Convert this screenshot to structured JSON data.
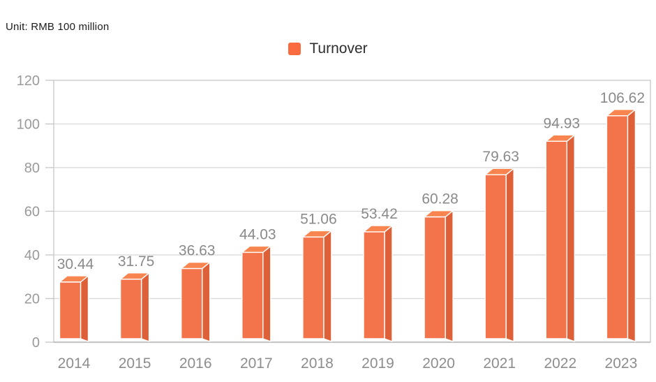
{
  "header": {
    "unit_label": "Unit: RMB 100 million"
  },
  "legend": {
    "label": "Turnover",
    "swatch_color": "#fb6b40"
  },
  "chart_data": {
    "type": "bar",
    "title": "",
    "unit": "RMB 100 million",
    "legend_entries": [
      "Turnover"
    ],
    "legend_position": "top-center",
    "categories": [
      "2014",
      "2015",
      "2016",
      "2017",
      "2018",
      "2019",
      "2020",
      "2021",
      "2022",
      "2023"
    ],
    "series": [
      {
        "name": "Turnover",
        "values": [
          30.44,
          31.75,
          36.63,
          44.03,
          51.06,
          53.42,
          60.28,
          79.63,
          94.93,
          106.62
        ]
      }
    ],
    "value_labels": [
      "30.44",
      "31.75",
      "36.63",
      "44.03",
      "51.06",
      "53.42",
      "60.28",
      "79.63",
      "94.93",
      "106.62"
    ],
    "xlabel": "",
    "ylabel": "",
    "ylim": [
      0,
      120
    ],
    "yticks": [
      0,
      20,
      40,
      60,
      80,
      100,
      120
    ],
    "grid": true,
    "style": {
      "bar_front": "#f3734a",
      "bar_top": "#f8854f",
      "bar_side": "#dd6038",
      "edge_color": "#ffffff",
      "grid_color": "#d8d8d8",
      "axis_color": "#c5c5c5",
      "tick_label_color": "#9a9a9a",
      "category_label_color": "#8d8d8d",
      "value_label_color": "#8a8a8a"
    }
  }
}
